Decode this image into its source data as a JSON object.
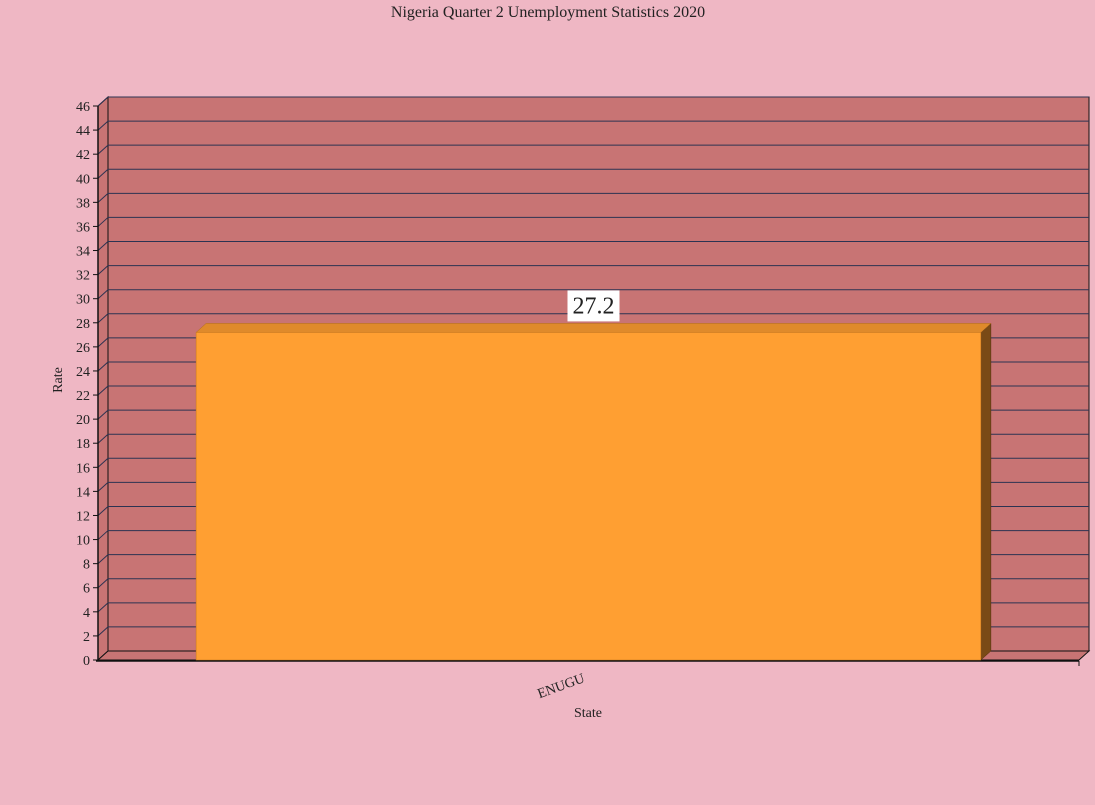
{
  "chart_data": {
    "type": "bar",
    "title": "Nigeria Quarter 2 Unemployment Statistics 2020",
    "xlabel": "State",
    "ylabel": "Rate",
    "categories": [
      "ENUGU"
    ],
    "values": [
      27.2
    ],
    "data_labels": [
      "27.2"
    ],
    "ylim": [
      0,
      46
    ],
    "y_ticks": [
      0,
      2,
      4,
      6,
      8,
      10,
      12,
      14,
      16,
      18,
      20,
      22,
      24,
      26,
      28,
      30,
      32,
      34,
      36,
      38,
      40,
      42,
      44,
      46
    ],
    "grid": true,
    "legend": "none",
    "colors": {
      "page_background": "#efb7c4",
      "plot_background": "#c87474",
      "gridline": "#2c3352",
      "bar_front": "#ff9f32",
      "bar_top": "#df8a2b",
      "bar_side": "#7a4a16",
      "axis": "#111111",
      "label_box": "#ffffff"
    }
  }
}
